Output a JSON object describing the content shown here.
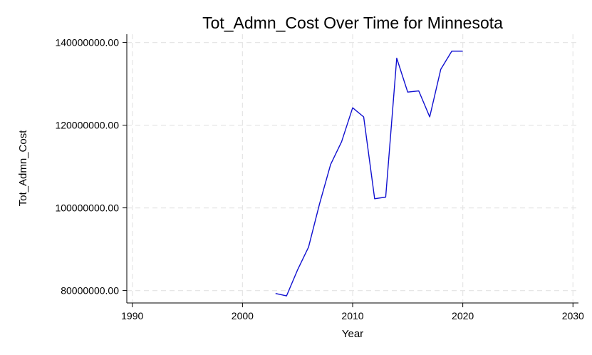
{
  "chart_data": {
    "type": "line",
    "title": "Tot_Admn_Cost Over Time for Minnesota",
    "xlabel": "Year",
    "ylabel": "Tot_Admn_Cost",
    "xlim": [
      1989.5,
      2030.5
    ],
    "ylim": [
      77000000,
      142000000
    ],
    "xticks": [
      1990,
      2000,
      2010,
      2020,
      2030
    ],
    "yticks": [
      80000000,
      100000000,
      120000000,
      140000000
    ],
    "ytick_labels": [
      "80000000.00",
      "100000000.00",
      "120000000.00",
      "140000000.00"
    ],
    "grid": true,
    "line_color": "#1010d0",
    "series": [
      {
        "x": [
          2003,
          2004,
          2005,
          2006,
          2007,
          2008,
          2009,
          2010,
          2011,
          2012,
          2013,
          2014,
          2015,
          2016,
          2017,
          2018,
          2019,
          2020
        ],
        "values": [
          79300000,
          78700000,
          85000000,
          90500000,
          101000000,
          110500000,
          116000000,
          124200000,
          122000000,
          102200000,
          102600000,
          136200000,
          128000000,
          128300000,
          122000000,
          133500000,
          137900000,
          137900000
        ]
      }
    ]
  }
}
